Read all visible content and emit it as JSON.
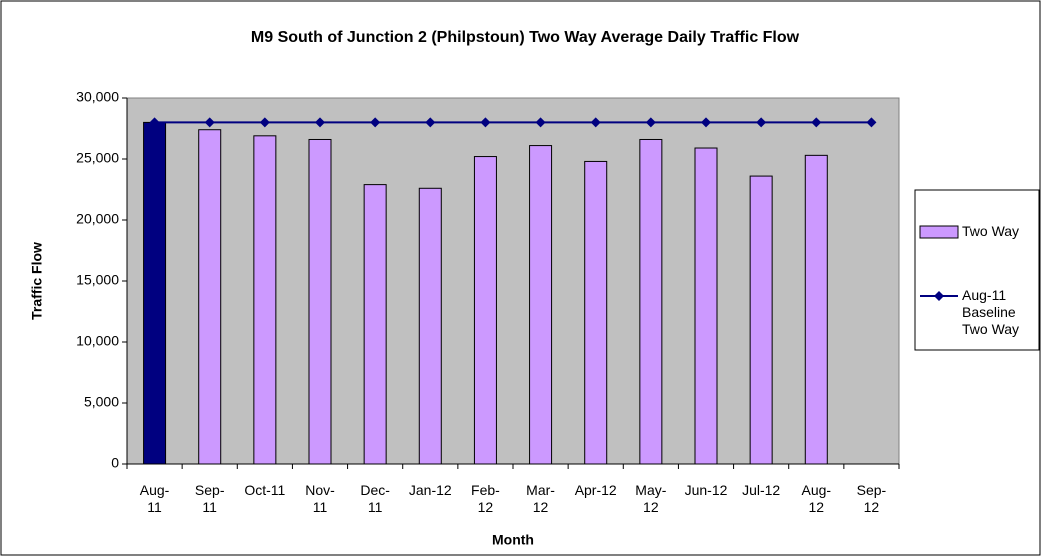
{
  "chart_data": {
    "type": "bar_line",
    "title": "M9 South of Junction 2 (Philpstoun) Two Way Average Daily Traffic Flow",
    "x_label": "Month",
    "y_label": "Traffic Flow",
    "categories": [
      "Aug-11",
      "Sep-11",
      "Oct-11",
      "Nov-11",
      "Dec-11",
      "Jan-12",
      "Feb-12",
      "Mar-12",
      "Apr-12",
      "May-12",
      "Jun-12",
      "Jul-12",
      "Aug-12",
      "Sep-12"
    ],
    "series": [
      {
        "name": "Two Way",
        "kind": "bar",
        "color": "#cc99ff",
        "colors": [
          "#000080",
          "#cc99ff",
          "#cc99ff",
          "#cc99ff",
          "#cc99ff",
          "#cc99ff",
          "#cc99ff",
          "#cc99ff",
          "#cc99ff",
          "#cc99ff",
          "#cc99ff",
          "#cc99ff",
          "#cc99ff",
          "#cc99ff"
        ],
        "values": [
          28000,
          27400,
          26900,
          26600,
          22900,
          22600,
          25200,
          26100,
          24800,
          26600,
          25900,
          23600,
          25300,
          null
        ]
      },
      {
        "name": "Aug-11 Baseline Two Way",
        "kind": "line",
        "color": "#000080",
        "values": [
          28000,
          28000,
          28000,
          28000,
          28000,
          28000,
          28000,
          28000,
          28000,
          28000,
          28000,
          28000,
          28000,
          28000
        ]
      }
    ],
    "ylim": [
      0,
      30000
    ],
    "yticks": [
      0,
      {
        "value": 5000,
        "label": "5,000"
      },
      {
        "value": 10000,
        "label": "10,000"
      },
      {
        "value": 15000,
        "label": "15,000"
      },
      {
        "value": 20000,
        "label": "20,000"
      },
      {
        "value": 25000,
        "label": "25,000"
      },
      {
        "value": 30000,
        "label": "30,000"
      }
    ],
    "legend": "right",
    "plot_background": "#c0c0c0"
  }
}
